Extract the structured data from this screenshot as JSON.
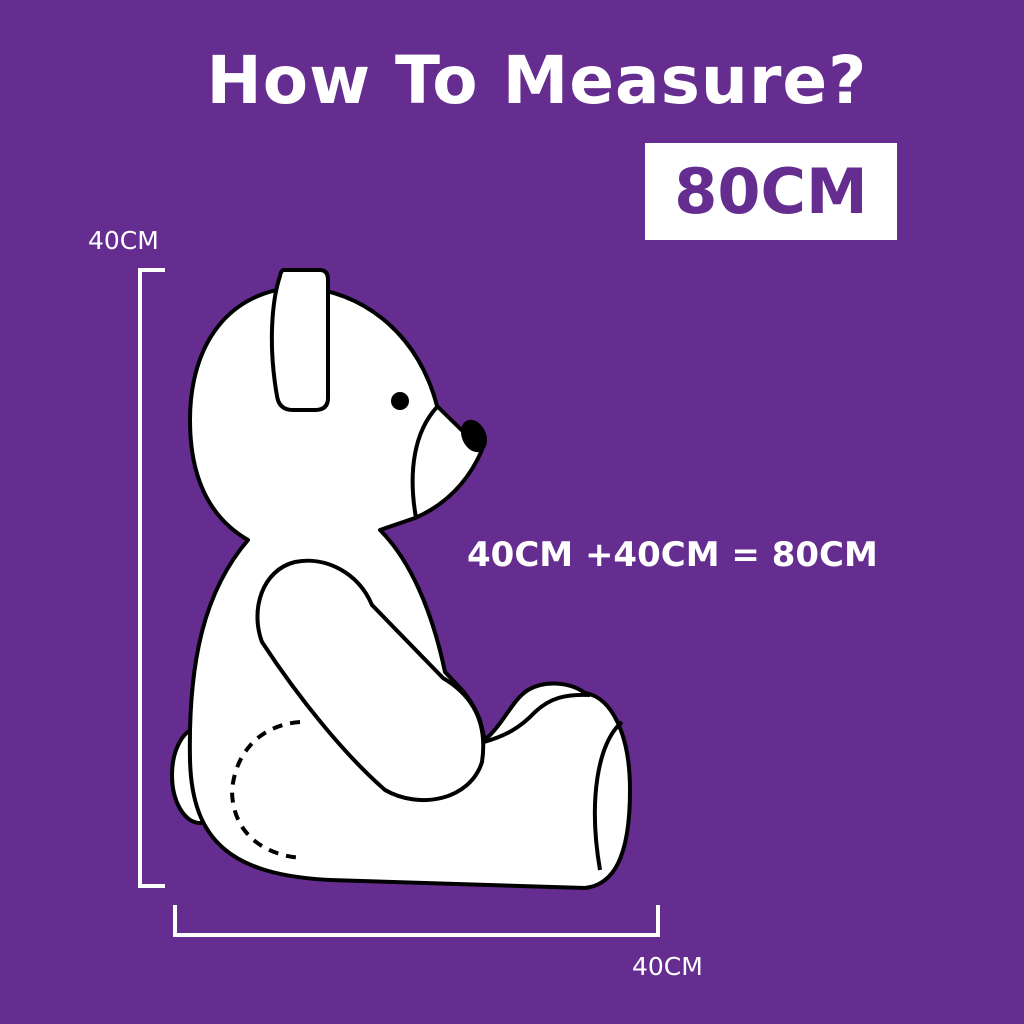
{
  "title": "How To Measure?",
  "size_badge": "80CM",
  "height_label": "40CM",
  "length_label": "40CM",
  "equation": "40CM +40CM = 80CM",
  "colors": {
    "background": "#652d8f",
    "badge": "#ffffff",
    "outline": "#000000"
  },
  "illustration": "teddy-bear-side-view"
}
